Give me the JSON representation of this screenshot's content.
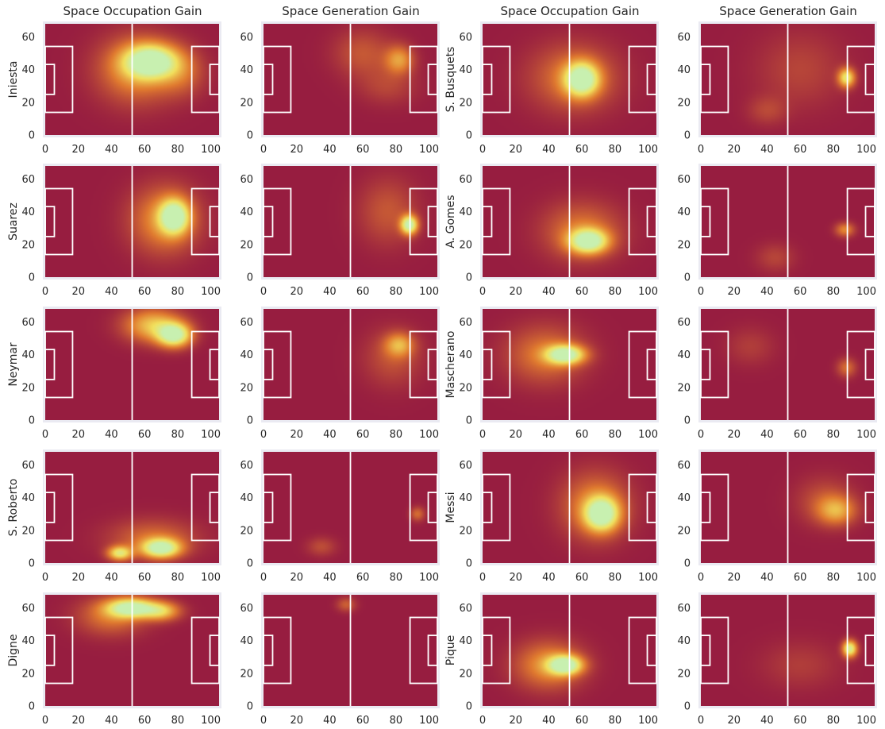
{
  "column_titles": [
    "Space Occupation Gain",
    "Space Generation Gain",
    "Space Occupation Gain",
    "Space Generation Gain"
  ],
  "colors": {
    "background_panel": "#eaeaf2",
    "low": "#971d40",
    "mid": "#e07a2f",
    "high": "#f2e05c",
    "peak": "#c8f0b0",
    "lines": "#ffffff"
  },
  "chart_data": {
    "type": "heatmap",
    "xlim": [
      0,
      105
    ],
    "ylim": [
      0,
      68
    ],
    "x_ticks": [
      0,
      20,
      40,
      60,
      80,
      100
    ],
    "y_ticks": [
      0,
      20,
      40,
      60
    ],
    "pitch_markings": true,
    "grid": false,
    "panels": [
      {
        "player": "Iniesta",
        "metric": "Space Occupation Gain",
        "row": 0,
        "col": 0,
        "hotspots": [
          {
            "x": 64,
            "y": 45,
            "sx": 11,
            "sy": 7,
            "w": 1.0
          },
          {
            "x": 55,
            "y": 40,
            "sx": 16,
            "sy": 14,
            "w": 0.45
          },
          {
            "x": 82,
            "y": 38,
            "sx": 10,
            "sy": 10,
            "w": 0.25
          }
        ]
      },
      {
        "player": "Iniesta",
        "metric": "Space Generation Gain",
        "row": 0,
        "col": 1,
        "hotspots": [
          {
            "x": 82,
            "y": 46,
            "sx": 6,
            "sy": 6,
            "w": 0.45
          },
          {
            "x": 60,
            "y": 50,
            "sx": 12,
            "sy": 10,
            "w": 0.22
          },
          {
            "x": 75,
            "y": 30,
            "sx": 12,
            "sy": 8,
            "w": 0.15
          }
        ]
      },
      {
        "player": "S. Busquets",
        "metric": "Space Occupation Gain",
        "row": 0,
        "col": 2,
        "hotspots": [
          {
            "x": 60,
            "y": 34,
            "sx": 7,
            "sy": 7,
            "w": 1.0
          },
          {
            "x": 55,
            "y": 35,
            "sx": 18,
            "sy": 14,
            "w": 0.35
          }
        ]
      },
      {
        "player": "S. Busquets",
        "metric": "Space Generation Gain",
        "row": 0,
        "col": 3,
        "hotspots": [
          {
            "x": 88,
            "y": 35,
            "sx": 3.5,
            "sy": 4,
            "w": 0.75
          },
          {
            "x": 60,
            "y": 40,
            "sx": 18,
            "sy": 16,
            "w": 0.15
          },
          {
            "x": 40,
            "y": 15,
            "sx": 8,
            "sy": 6,
            "w": 0.15
          }
        ]
      },
      {
        "player": "Suarez",
        "metric": "Space Occupation Gain",
        "row": 1,
        "col": 0,
        "hotspots": [
          {
            "x": 78,
            "y": 37,
            "sx": 6,
            "sy": 7,
            "w": 1.0
          },
          {
            "x": 72,
            "y": 35,
            "sx": 14,
            "sy": 14,
            "w": 0.45
          }
        ]
      },
      {
        "player": "Suarez",
        "metric": "Space Generation Gain",
        "row": 1,
        "col": 1,
        "hotspots": [
          {
            "x": 88,
            "y": 32,
            "sx": 3.5,
            "sy": 4,
            "w": 1.0
          },
          {
            "x": 75,
            "y": 40,
            "sx": 12,
            "sy": 14,
            "w": 0.22
          }
        ]
      },
      {
        "player": "A. Gomes",
        "metric": "Space Occupation Gain",
        "row": 1,
        "col": 2,
        "hotspots": [
          {
            "x": 64,
            "y": 22,
            "sx": 8,
            "sy": 5,
            "w": 1.0
          },
          {
            "x": 60,
            "y": 28,
            "sx": 16,
            "sy": 12,
            "w": 0.35
          }
        ]
      },
      {
        "player": "A. Gomes",
        "metric": "Space Generation Gain",
        "row": 1,
        "col": 3,
        "hotspots": [
          {
            "x": 87,
            "y": 29,
            "sx": 4,
            "sy": 3,
            "w": 0.4
          },
          {
            "x": 45,
            "y": 12,
            "sx": 8,
            "sy": 6,
            "w": 0.15
          }
        ]
      },
      {
        "player": "Neymar",
        "metric": "Space Occupation Gain",
        "row": 2,
        "col": 0,
        "hotspots": [
          {
            "x": 78,
            "y": 52,
            "sx": 7,
            "sy": 5,
            "w": 1.0
          },
          {
            "x": 65,
            "y": 58,
            "sx": 12,
            "sy": 7,
            "w": 0.6
          }
        ]
      },
      {
        "player": "Neymar",
        "metric": "Space Generation Gain",
        "row": 2,
        "col": 1,
        "hotspots": [
          {
            "x": 82,
            "y": 46,
            "sx": 6,
            "sy": 5,
            "w": 0.45
          },
          {
            "x": 78,
            "y": 38,
            "sx": 12,
            "sy": 12,
            "w": 0.2
          }
        ]
      },
      {
        "player": "Mascherano",
        "metric": "Space Occupation Gain",
        "row": 2,
        "col": 2,
        "hotspots": [
          {
            "x": 50,
            "y": 40,
            "sx": 8,
            "sy": 4,
            "w": 1.0
          },
          {
            "x": 38,
            "y": 40,
            "sx": 16,
            "sy": 12,
            "w": 0.35
          }
        ]
      },
      {
        "player": "Mascherano",
        "metric": "Space Generation Gain",
        "row": 2,
        "col": 3,
        "hotspots": [
          {
            "x": 88,
            "y": 32,
            "sx": 4,
            "sy": 4,
            "w": 0.3
          },
          {
            "x": 30,
            "y": 45,
            "sx": 10,
            "sy": 8,
            "w": 0.12
          }
        ]
      },
      {
        "player": "S. Roberto",
        "metric": "Space Occupation Gain",
        "row": 3,
        "col": 0,
        "hotspots": [
          {
            "x": 70,
            "y": 9,
            "sx": 8,
            "sy": 4,
            "w": 1.0
          },
          {
            "x": 45,
            "y": 6,
            "sx": 5,
            "sy": 3,
            "w": 0.75
          },
          {
            "x": 65,
            "y": 15,
            "sx": 18,
            "sy": 8,
            "w": 0.3
          }
        ]
      },
      {
        "player": "S. Roberto",
        "metric": "Space Generation Gain",
        "row": 3,
        "col": 1,
        "hotspots": [
          {
            "x": 93,
            "y": 30,
            "sx": 3,
            "sy": 3,
            "w": 0.3
          },
          {
            "x": 35,
            "y": 10,
            "sx": 6,
            "sy": 4,
            "w": 0.18
          }
        ]
      },
      {
        "player": "Messi",
        "metric": "Space Occupation Gain",
        "row": 3,
        "col": 2,
        "hotspots": [
          {
            "x": 72,
            "y": 30,
            "sx": 7,
            "sy": 7,
            "w": 1.0
          },
          {
            "x": 68,
            "y": 35,
            "sx": 14,
            "sy": 14,
            "w": 0.4
          }
        ]
      },
      {
        "player": "Messi",
        "metric": "Space Generation Gain",
        "row": 3,
        "col": 3,
        "hotspots": [
          {
            "x": 82,
            "y": 32,
            "sx": 8,
            "sy": 6,
            "w": 0.45
          },
          {
            "x": 75,
            "y": 38,
            "sx": 12,
            "sy": 10,
            "w": 0.2
          }
        ]
      },
      {
        "player": "Digne",
        "metric": "Space Occupation Gain",
        "row": 4,
        "col": 0,
        "hotspots": [
          {
            "x": 52,
            "y": 60,
            "sx": 10,
            "sy": 4,
            "w": 1.0
          },
          {
            "x": 70,
            "y": 58,
            "sx": 8,
            "sy": 4,
            "w": 0.6
          },
          {
            "x": 40,
            "y": 55,
            "sx": 14,
            "sy": 8,
            "w": 0.35
          }
        ]
      },
      {
        "player": "Digne",
        "metric": "Space Generation Gain",
        "row": 4,
        "col": 1,
        "hotspots": [
          {
            "x": 50,
            "y": 62,
            "sx": 4,
            "sy": 3,
            "w": 0.25
          }
        ]
      },
      {
        "player": "Pique",
        "metric": "Space Occupation Gain",
        "row": 4,
        "col": 2,
        "hotspots": [
          {
            "x": 50,
            "y": 25,
            "sx": 7,
            "sy": 4,
            "w": 1.0
          },
          {
            "x": 40,
            "y": 25,
            "sx": 14,
            "sy": 10,
            "w": 0.45
          }
        ]
      },
      {
        "player": "Pique",
        "metric": "Space Generation Gain",
        "row": 4,
        "col": 3,
        "hotspots": [
          {
            "x": 90,
            "y": 35,
            "sx": 3,
            "sy": 3.5,
            "w": 0.9
          },
          {
            "x": 60,
            "y": 25,
            "sx": 16,
            "sy": 10,
            "w": 0.12
          }
        ]
      }
    ]
  }
}
